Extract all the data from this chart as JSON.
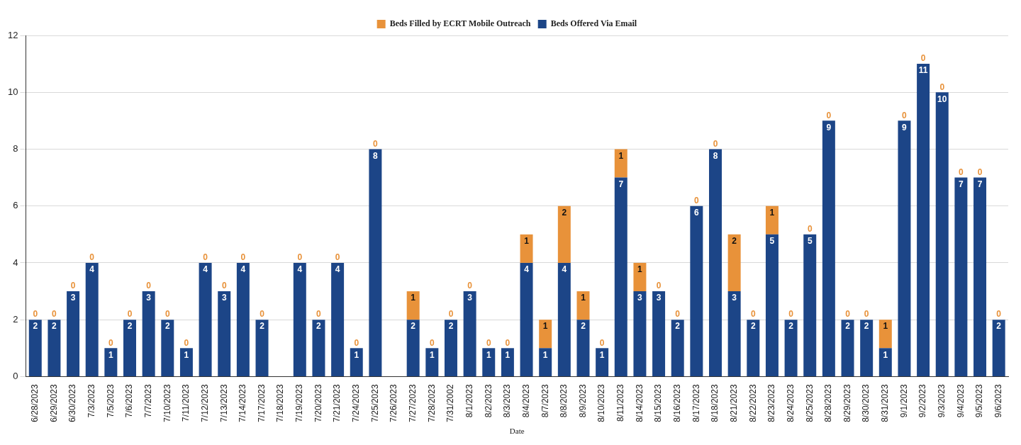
{
  "chart_data": {
    "type": "bar",
    "stacked": true,
    "xlabel": "Date",
    "categories": [
      "6/28/2023",
      "6/29/2023",
      "6/30/2023",
      "7/3/2023",
      "7/5/2023",
      "7/6/2023",
      "7/7/2023",
      "7/10/2023",
      "7/11/2023",
      "7/12/2023",
      "7/13/2023",
      "7/14/2023",
      "7/17/2023",
      "7/18/2023",
      "7/19/2023",
      "7/20/2023",
      "7/21/2023",
      "7/24/2023",
      "7/25/2023",
      "7/26/2023",
      "7/27/2023",
      "7/28/2023",
      "7/31/2002",
      "8/1/2023",
      "8/2/2023",
      "8/3/2023",
      "8/4/2023",
      "8/7/2023",
      "8/8/2023",
      "8/9/2023",
      "8/10/2023",
      "8/11/2023",
      "8/14/2023",
      "8/15/2023",
      "8/16/2023",
      "8/17/2023",
      "8/18/2023",
      "8/21/2023",
      "8/22/2023",
      "8/23/2023",
      "8/24/2023",
      "8/25/2023",
      "8/28/2023",
      "8/29/2023",
      "8/30/2023",
      "8/31/2023",
      "9/1/2023",
      "9/2/2023",
      "9/3/2023",
      "9/4/2023",
      "9/5/2023",
      "9/6/2023"
    ],
    "series": [
      {
        "name": "Beds Offered Via Email",
        "color": "#1c4587",
        "values": [
          2,
          2,
          3,
          4,
          1,
          2,
          3,
          2,
          1,
          4,
          3,
          4,
          2,
          0,
          4,
          2,
          4,
          1,
          8,
          0,
          2,
          1,
          2,
          3,
          1,
          1,
          4,
          1,
          4,
          2,
          1,
          7,
          3,
          3,
          2,
          6,
          8,
          3,
          2,
          5,
          2,
          5,
          9,
          2,
          2,
          1,
          9,
          11,
          10,
          7,
          7,
          2
        ],
        "value_labels": [
          "2",
          "2",
          "3",
          "4",
          "1",
          "2",
          "3",
          "2",
          "1",
          "4",
          "3",
          "4",
          "2",
          null,
          "4",
          "2",
          "4",
          "1",
          "8",
          null,
          "2",
          "1",
          "2",
          "3",
          "1",
          "1",
          "4",
          "1",
          "4",
          "2",
          "1",
          "7",
          "3",
          "3",
          "2",
          "6",
          "8",
          "3",
          "2",
          "5",
          "2",
          "5",
          "9",
          "2",
          "2",
          "1",
          "9",
          "11",
          "10",
          "7",
          "7",
          "2"
        ]
      },
      {
        "name": "Beds Filled by ECRT Mobile Outreach",
        "color": "#e8923a",
        "values": [
          0,
          0,
          0,
          0,
          0,
          0,
          0,
          0,
          0,
          0,
          0,
          0,
          0,
          0,
          0,
          0,
          0,
          0,
          0,
          0,
          1,
          0,
          0,
          0,
          0,
          0,
          1,
          1,
          2,
          1,
          0,
          1,
          1,
          0,
          0,
          0,
          0,
          2,
          0,
          1,
          0,
          0,
          0,
          0,
          0,
          1,
          0,
          0,
          0,
          0,
          0,
          0
        ],
        "value_labels": [
          "0",
          "0",
          "0",
          "0",
          "0",
          "0",
          "0",
          "0",
          "0",
          "0",
          "0",
          "0",
          "0",
          null,
          "0",
          "0",
          "0",
          "0",
          "0",
          null,
          "1",
          "0",
          "0",
          "0",
          "0",
          "0",
          "1",
          "1",
          "2",
          "1",
          "0",
          "1",
          "1",
          "0",
          "0",
          "0",
          "0",
          "2",
          "0",
          "1",
          "0",
          "0",
          "0",
          "0",
          "0",
          "1",
          "0",
          "0",
          "0",
          "0",
          "0",
          "0"
        ]
      }
    ],
    "ylim": [
      0,
      12
    ],
    "yticks": [
      0,
      2,
      4,
      6,
      8,
      10,
      12
    ],
    "grid": "y",
    "legend": "top"
  }
}
